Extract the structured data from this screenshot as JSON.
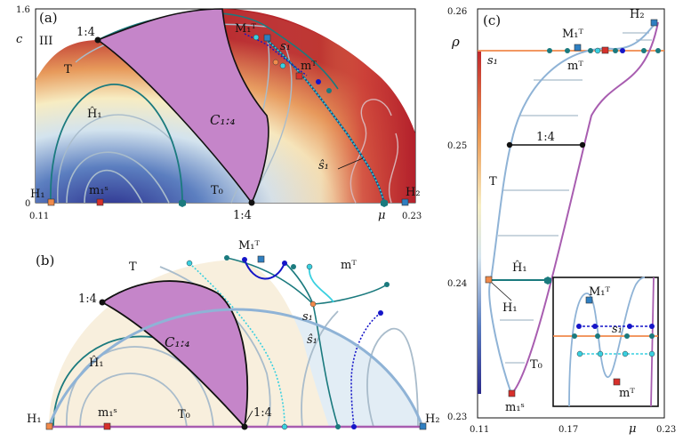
{
  "panel_a": {
    "label": "(a)",
    "region": "III",
    "ylabel": "c",
    "y_ticks": [
      "1.6",
      "0"
    ],
    "x_ticks": [
      "0.11",
      "0.23"
    ],
    "xlabel": "μ",
    "labels": {
      "r14_top": "1:4",
      "r14_bottom": "1:4",
      "T": "T",
      "H1hat": "Ĥ₁",
      "C14": "C₁:₄",
      "T0": "T₀",
      "H1": "H₁",
      "m1s": "m₁ˢ",
      "H2": "H₂",
      "M1T": "M₁ᵀ",
      "s1": "s₁",
      "mT": "mᵀ",
      "s1hat": "ŝ₁"
    }
  },
  "panel_b": {
    "label": "(b)",
    "labels": {
      "M1T": "M₁ᵀ",
      "T": "T",
      "mT": "mᵀ",
      "r14_top": "1:4",
      "C14": "C₁:₄",
      "H1hat": "Ĥ₁",
      "s1": "s₁",
      "s1hat": "ŝ₁",
      "H1": "H₁",
      "m1s": "m₁ˢ",
      "T0": "T₀",
      "r14_bottom": "1:4",
      "H2": "H₂"
    }
  },
  "panel_c": {
    "label": "(c)",
    "ylabel": "ρ",
    "xlabel": "μ",
    "y_ticks": [
      "0.26",
      "0.25",
      "0.24",
      "0.23"
    ],
    "x_ticks": [
      "0.11",
      "0.17",
      "0.23"
    ],
    "labels": {
      "M1T": "M₁ᵀ",
      "H2": "H₂",
      "s1": "s₁",
      "mT": "mᵀ",
      "r14": "1:4",
      "T": "T",
      "H1hat": "Ĥ₁",
      "H1": "H₁",
      "T0": "T₀",
      "m1s": "m₁ˢ"
    },
    "inset_labels": {
      "M1T": "M₁ᵀ",
      "s1": "s₁",
      "mT": "mᵀ"
    }
  },
  "colors": {
    "curve_teal": "#1b7a7e",
    "curve_grey": "#9bb3c8",
    "region_purple": "#c585c9",
    "boundary_blue": "#8fb3d6",
    "marker_orange": "#f08a4b",
    "marker_red": "#d7302b",
    "marker_blue": "#2f7fc1",
    "dotted_cyan": "#39d0e0",
    "dotted_blue": "#1515c8",
    "bg_beige": "#f8efdd",
    "bg_lightblue": "#e2edf5"
  }
}
